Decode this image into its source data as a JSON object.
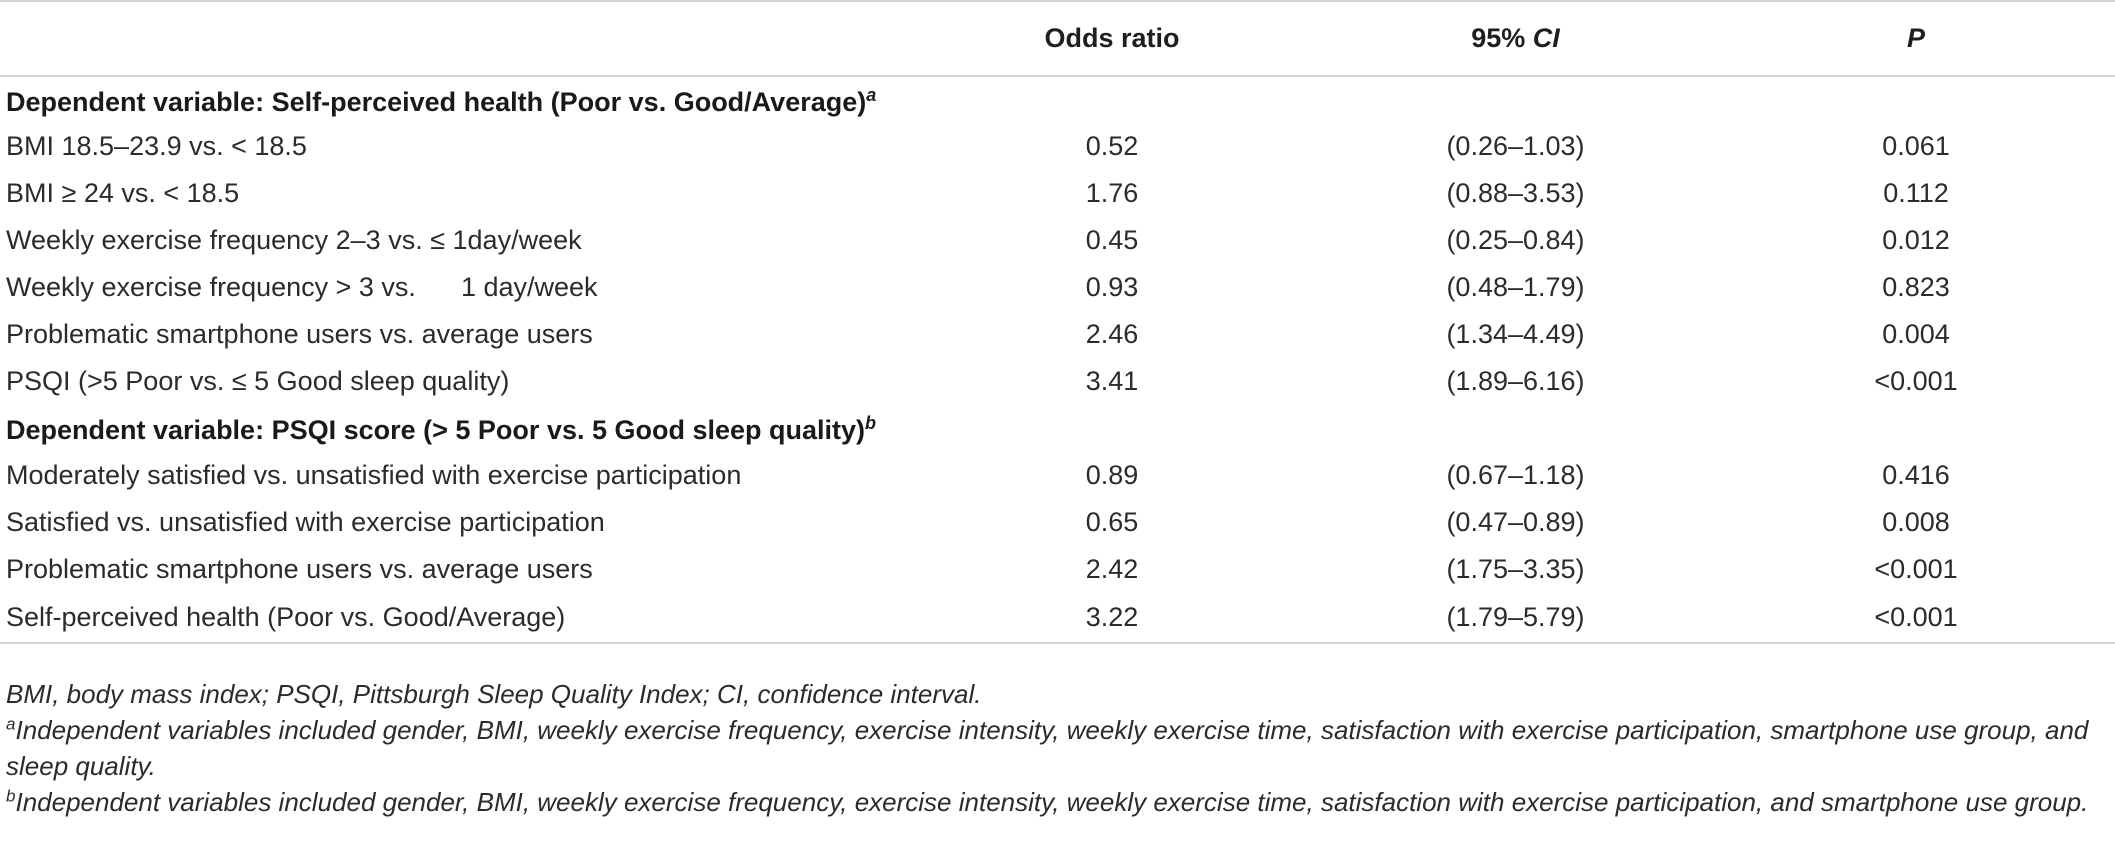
{
  "table": {
    "headers": {
      "label": "",
      "odds_ratio": "Odds ratio",
      "ci_prefix": "95% ",
      "ci_italic": "CI",
      "p": "P"
    },
    "sections": [
      {
        "title": "Dependent variable: Self-perceived health (Poor vs. Good/Average)",
        "marker": "a",
        "rows": [
          {
            "label": "BMI 18.5–23.9 vs. < 18.5",
            "or": "0.52",
            "ci": "(0.26–1.03)",
            "p": "0.061"
          },
          {
            "label": "BMI ≥ 24 vs. < 18.5",
            "or": "1.76",
            "ci": "(0.88–3.53)",
            "p": "0.112"
          },
          {
            "label": "Weekly exercise frequency 2–3 vs. ≤ 1day/week",
            "or": "0.45",
            "ci": "(0.25–0.84)",
            "p": "0.012"
          },
          {
            "label": "Weekly exercise frequency > 3 vs.      1 day/week",
            "or": "0.93",
            "ci": "(0.48–1.79)",
            "p": "0.823"
          },
          {
            "label": "Problematic smartphone users vs. average users",
            "or": "2.46",
            "ci": "(1.34–4.49)",
            "p": "0.004"
          },
          {
            "label": "PSQI (>5 Poor vs. ≤ 5 Good sleep quality)",
            "or": "3.41",
            "ci": "(1.89–6.16)",
            "p": "<0.001"
          }
        ]
      },
      {
        "title": "Dependent variable: PSQI score (> 5 Poor vs. 5 Good sleep quality)",
        "marker": "b",
        "rows": [
          {
            "label": "Moderately satisfied vs. unsatisfied with exercise participation",
            "or": "0.89",
            "ci": "(0.67–1.18)",
            "p": "0.416"
          },
          {
            "label": "Satisfied vs. unsatisfied with exercise participation",
            "or": "0.65",
            "ci": "(0.47–0.89)",
            "p": "0.008"
          },
          {
            "label": "Problematic smartphone users vs. average users",
            "or": "2.42",
            "ci": "(1.75–3.35)",
            "p": "<0.001"
          },
          {
            "label": "Self-perceived health (Poor vs. Good/Average)",
            "or": "3.22",
            "ci": "(1.79–5.79)",
            "p": "<0.001"
          }
        ]
      }
    ]
  },
  "footnotes": {
    "abbrev": "BMI, body mass index; PSQI, Pittsburgh Sleep Quality Index; CI, confidence interval.",
    "a_marker": "a",
    "a_text": "Independent variables included gender, BMI, weekly exercise frequency, exercise intensity, weekly exercise time, satisfaction with exercise participation, smartphone use group, and sleep quality.",
    "b_marker": "b",
    "b_text": "Independent variables included gender, BMI, weekly exercise frequency, exercise intensity, weekly exercise time, satisfaction with exercise participation, and smartphone use group."
  },
  "colors": {
    "text": "#2b2b2b",
    "rule": "#d6d6d6"
  }
}
